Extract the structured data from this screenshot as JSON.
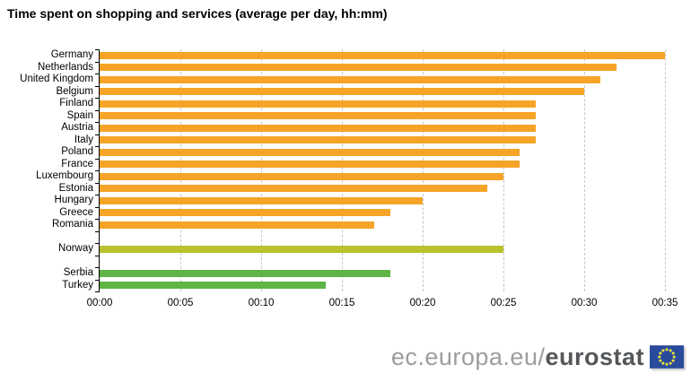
{
  "title": "Time spent on shopping and services (average per day, hh:mm)",
  "watermark": {
    "prefix": "ec.europa.eu/",
    "brand": "eurostat",
    "flag_icon": "eu-flag-icon"
  },
  "colors": {
    "eu_bar": "#F6A427",
    "efta_bar": "#B9C22E",
    "candidate_bar": "#5EB545",
    "gridline": "#C6C6C6",
    "axis": "#000000",
    "flag_blue": "#2A4B9B",
    "flag_stars": "#E9E23D"
  },
  "chart_data": {
    "type": "bar",
    "orientation": "horizontal",
    "title": "Time spent on shopping and services (average per day, hh:mm)",
    "xlabel": "",
    "ylabel": "",
    "x_ticks": [
      "00:00",
      "00:05",
      "00:10",
      "00:15",
      "00:20",
      "00:25",
      "00:30",
      "00:35"
    ],
    "x_max_minutes": 35,
    "grid": true,
    "groups": [
      {
        "name": "eu-countries",
        "color": "#F6A427",
        "rows": [
          {
            "label": "Germany",
            "value_minutes": 35,
            "value_hhmm": "00:35"
          },
          {
            "label": "Netherlands",
            "value_minutes": 32,
            "value_hhmm": "00:32"
          },
          {
            "label": "United Kingdom",
            "value_minutes": 31,
            "value_hhmm": "00:31"
          },
          {
            "label": "Belgium",
            "value_minutes": 30,
            "value_hhmm": "00:30"
          },
          {
            "label": "Finland",
            "value_minutes": 27,
            "value_hhmm": "00:27"
          },
          {
            "label": "Spain",
            "value_minutes": 27,
            "value_hhmm": "00:27"
          },
          {
            "label": "Austria",
            "value_minutes": 27,
            "value_hhmm": "00:27"
          },
          {
            "label": "Italy",
            "value_minutes": 27,
            "value_hhmm": "00:27"
          },
          {
            "label": "Poland",
            "value_minutes": 26,
            "value_hhmm": "00:26"
          },
          {
            "label": "France",
            "value_minutes": 26,
            "value_hhmm": "00:26"
          },
          {
            "label": "Luxembourg",
            "value_minutes": 25,
            "value_hhmm": "00:25"
          },
          {
            "label": "Estonia",
            "value_minutes": 24,
            "value_hhmm": "00:24"
          },
          {
            "label": "Hungary",
            "value_minutes": 20,
            "value_hhmm": "00:20"
          },
          {
            "label": "Greece",
            "value_minutes": 18,
            "value_hhmm": "00:18"
          },
          {
            "label": "Romania",
            "value_minutes": 17,
            "value_hhmm": "00:17"
          }
        ]
      },
      {
        "name": "efta-countries",
        "color": "#B9C22E",
        "rows": [
          {
            "label": "Norway",
            "value_minutes": 25,
            "value_hhmm": "00:25"
          }
        ]
      },
      {
        "name": "candidate-countries",
        "color": "#5EB545",
        "rows": [
          {
            "label": "Serbia",
            "value_minutes": 18,
            "value_hhmm": "00:18"
          },
          {
            "label": "Turkey",
            "value_minutes": 14,
            "value_hhmm": "00:14"
          }
        ]
      }
    ]
  }
}
